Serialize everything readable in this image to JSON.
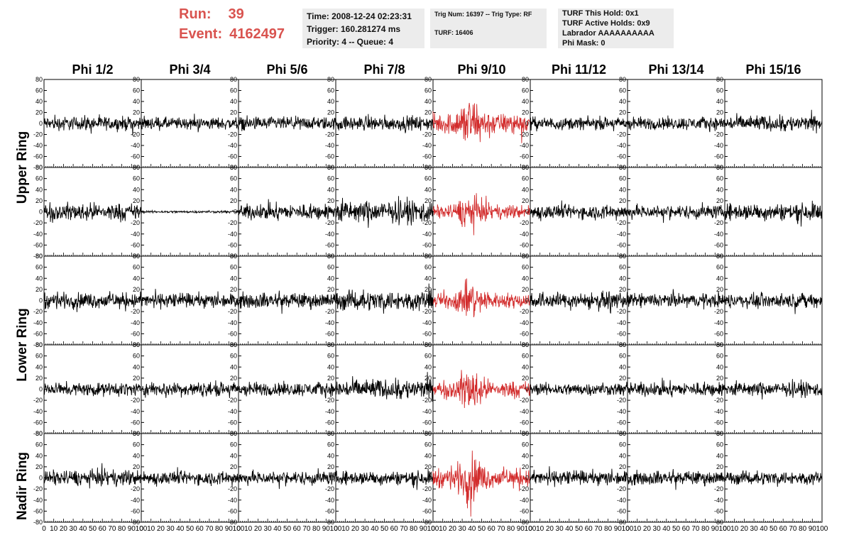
{
  "header": {
    "run_label": "Run:",
    "run_value": "39",
    "event_label": "Event:",
    "event_value": "4162497"
  },
  "info_box_1": {
    "time": "Time: 2008-12-24 02:23:31",
    "trigger": "Trigger: 160.281274 ms",
    "priority": "Priority: 4 -- Queue: 4"
  },
  "info_box_2": {
    "trig": "Trig Num: 16397 -- Trig Type: RF",
    "turf": "TURF: 16406"
  },
  "info_box_3": {
    "this_hold": "TURF This Hold: 0x1",
    "active_holds": "TURF Active Holds: 0x9",
    "labrador": "Labrador AAAAAAAAAA",
    "phi_mask": "Phi Mask: 0"
  },
  "ring_labels": [
    "Upper Ring",
    "Lower Ring",
    "Nadir Ring"
  ],
  "colors": {
    "normal": "#000000",
    "highlight": "#d22b2b",
    "accent_text": "#d9534f"
  },
  "chart_data": {
    "type": "line",
    "columns": [
      "Phi 1/2",
      "Phi 3/4",
      "Phi 5/6",
      "Phi 7/8",
      "Phi 9/10",
      "Phi 11/12",
      "Phi 13/14",
      "Phi 15/16"
    ],
    "rows": 5,
    "x_range": [
      0,
      100
    ],
    "y_range": [
      -80,
      80
    ],
    "x_ticks": [
      "0",
      "10",
      "20",
      "30",
      "40",
      "50",
      "60",
      "70",
      "80",
      "90",
      "100"
    ],
    "y_ticks": [
      "80",
      "60",
      "40",
      "20",
      "0",
      "-20",
      "-40",
      "-60",
      "-80"
    ],
    "highlight_column": "Phi 9/10",
    "highlight_color": "#d22b2b",
    "waveform_amplitude": [
      [
        18,
        16,
        17,
        18,
        38,
        16,
        17,
        20
      ],
      [
        22,
        3,
        20,
        28,
        25,
        18,
        17,
        22
      ],
      [
        20,
        18,
        20,
        25,
        28,
        20,
        18,
        18
      ],
      [
        17,
        18,
        18,
        25,
        30,
        16,
        18,
        18
      ],
      [
        20,
        17,
        17,
        18,
        35,
        18,
        18,
        17
      ]
    ]
  }
}
